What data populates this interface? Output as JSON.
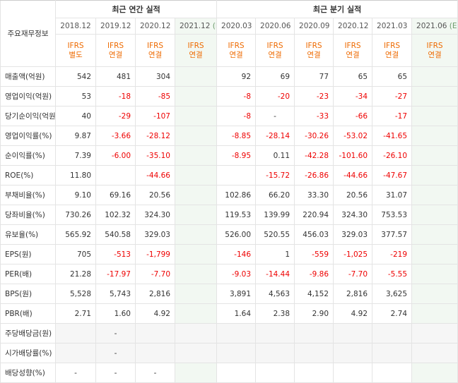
{
  "header": {
    "corner_label": "주요재무정보",
    "annual_group": "최근 연간 실적",
    "quarterly_group": "최근 분기 실적"
  },
  "periods": [
    {
      "label": "2018.12",
      "est": false,
      "std": "IFRS",
      "kind": "별도"
    },
    {
      "label": "2019.12",
      "est": false,
      "std": "IFRS",
      "kind": "연결"
    },
    {
      "label": "2020.12",
      "est": false,
      "std": "IFRS",
      "kind": "연결"
    },
    {
      "label": "2021.12",
      "est": true,
      "std": "IFRS",
      "kind": "연결",
      "est_mark": "(E)"
    },
    {
      "label": "2020.03",
      "est": false,
      "std": "IFRS",
      "kind": "연결"
    },
    {
      "label": "2020.06",
      "est": false,
      "std": "IFRS",
      "kind": "연결"
    },
    {
      "label": "2020.09",
      "est": false,
      "std": "IFRS",
      "kind": "연결"
    },
    {
      "label": "2020.12",
      "est": false,
      "std": "IFRS",
      "kind": "연결"
    },
    {
      "label": "2021.03",
      "est": false,
      "std": "IFRS",
      "kind": "연결"
    },
    {
      "label": "2021.06",
      "est": true,
      "std": "IFRS",
      "kind": "연결",
      "est_mark": "(E)"
    }
  ],
  "rows": [
    {
      "label": "매출액(억원)",
      "values": [
        "542",
        "481",
        "304",
        "",
        "92",
        "69",
        "77",
        "65",
        "65",
        ""
      ],
      "groupStart": true
    },
    {
      "label": "영업이익(억원)",
      "values": [
        "53",
        "-18",
        "-85",
        "",
        "-8",
        "-20",
        "-23",
        "-34",
        "-27",
        ""
      ]
    },
    {
      "label": "당기순이익(억원)",
      "values": [
        "40",
        "-29",
        "-107",
        "",
        "-8",
        "-",
        "-33",
        "-66",
        "-17",
        ""
      ]
    },
    {
      "label": "영업이익률(%)",
      "values": [
        "9.87",
        "-3.66",
        "-28.12",
        "",
        "-8.85",
        "-28.14",
        "-30.26",
        "-53.02",
        "-41.65",
        ""
      ],
      "groupStart": true
    },
    {
      "label": "순이익률(%)",
      "values": [
        "7.39",
        "-6.00",
        "-35.10",
        "",
        "-8.95",
        "0.11",
        "-42.28",
        "-101.60",
        "-26.10",
        ""
      ]
    },
    {
      "label": "ROE(%)",
      "values": [
        "11.80",
        "",
        "-44.66",
        "",
        "",
        "-15.72",
        "-26.86",
        "-44.66",
        "-47.67",
        ""
      ]
    },
    {
      "label": "부채비율(%)",
      "values": [
        "9.10",
        "69.16",
        "20.56",
        "",
        "102.86",
        "66.20",
        "33.30",
        "20.56",
        "31.07",
        ""
      ],
      "groupStart": true
    },
    {
      "label": "당좌비율(%)",
      "values": [
        "730.26",
        "102.32",
        "324.30",
        "",
        "119.53",
        "139.99",
        "220.94",
        "324.30",
        "753.53",
        ""
      ]
    },
    {
      "label": "유보율(%)",
      "values": [
        "565.92",
        "540.58",
        "329.03",
        "",
        "526.00",
        "520.55",
        "456.03",
        "329.03",
        "377.57",
        ""
      ]
    },
    {
      "label": "EPS(원)",
      "values": [
        "705",
        "-513",
        "-1,799",
        "",
        "-146",
        "1",
        "-559",
        "-1,025",
        "-219",
        ""
      ],
      "groupStart": true
    },
    {
      "label": "PER(배)",
      "values": [
        "21.28",
        "-17.97",
        "-7.70",
        "",
        "-9.03",
        "-14.44",
        "-9.86",
        "-7.70",
        "-5.55",
        ""
      ]
    },
    {
      "label": "BPS(원)",
      "values": [
        "5,528",
        "5,743",
        "2,816",
        "",
        "3,891",
        "4,563",
        "4,152",
        "2,816",
        "3,625",
        ""
      ]
    },
    {
      "label": "PBR(배)",
      "values": [
        "2.71",
        "1.60",
        "4.92",
        "",
        "1.64",
        "2.38",
        "2.90",
        "4.92",
        "2.74",
        ""
      ]
    },
    {
      "label": "주당배당금(원)",
      "values": [
        "",
        "-",
        "",
        "",
        "",
        "",
        "",
        "",
        "",
        ""
      ],
      "groupStart": true,
      "grayFirst": true
    },
    {
      "label": "시가배당률(%)",
      "values": [
        "",
        "-",
        "",
        "",
        "",
        "",
        "",
        "",
        "",
        ""
      ],
      "grayFirst": true
    },
    {
      "label": "배당성향(%)",
      "values": [
        "-",
        "-",
        "-",
        "",
        "",
        "",
        "",
        "",
        "",
        ""
      ]
    }
  ]
}
